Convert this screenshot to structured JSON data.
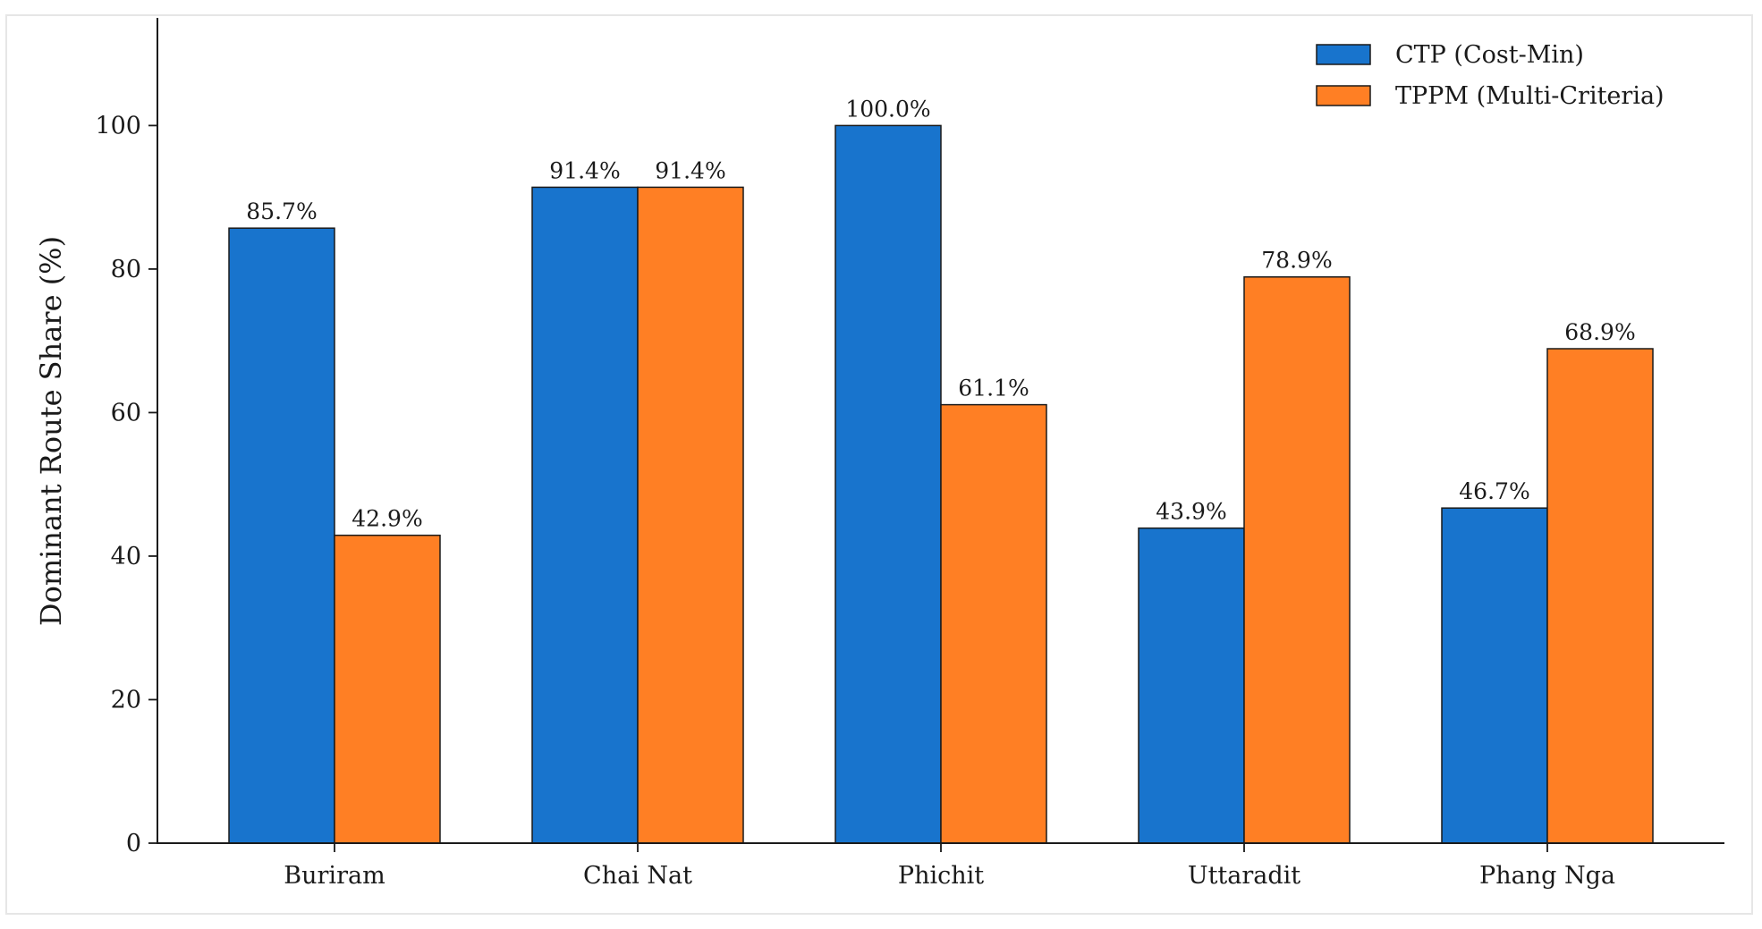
{
  "chart_data": {
    "type": "bar",
    "title": "",
    "xlabel": "",
    "ylabel": "Dominant Route Share (%)",
    "categories": [
      "Buriram",
      "Chai Nat",
      "Phichit",
      "Uttaradit",
      "Phang Nga"
    ],
    "series": [
      {
        "name": "CTP (Cost-Min)",
        "color": "#1874CD",
        "values": [
          85.7,
          91.4,
          100.0,
          43.9,
          46.7
        ],
        "labels": [
          "85.7%",
          "91.4%",
          "100.0%",
          "43.9%",
          "46.7%"
        ]
      },
      {
        "name": "TPPM (Multi-Criteria)",
        "color": "#FF7F24",
        "values": [
          42.9,
          91.4,
          61.1,
          78.9,
          68.9
        ],
        "labels": [
          "42.9%",
          "91.4%",
          "61.1%",
          "78.9%",
          "68.9%"
        ]
      }
    ],
    "ylim": [
      0,
      115
    ],
    "yticks": [
      0,
      20,
      40,
      60,
      80,
      100
    ],
    "grid": false,
    "legend_position": "top-right"
  }
}
